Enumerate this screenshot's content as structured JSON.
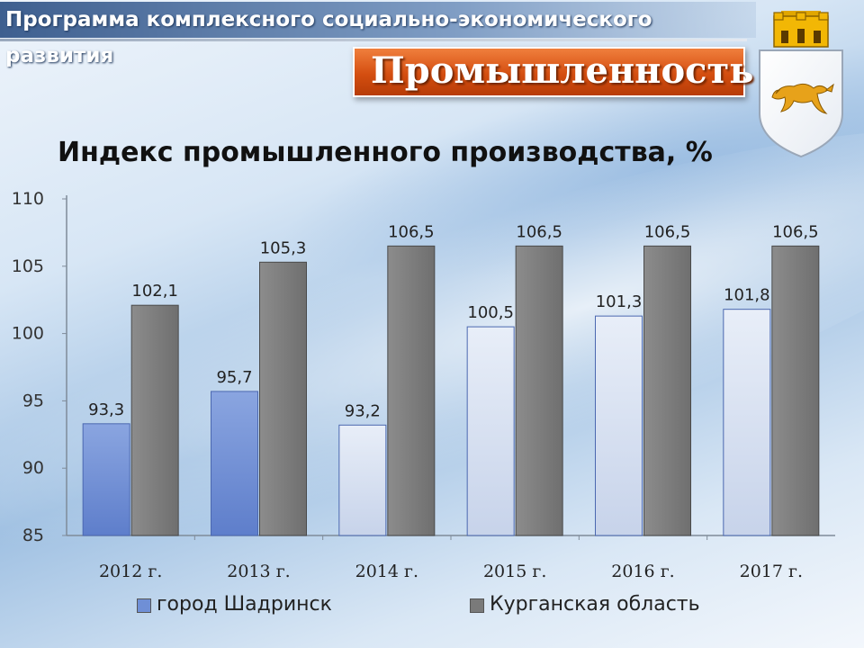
{
  "header": {
    "program_title": "Программа комплексного социально-экономического развития",
    "section_title": "Промышленность"
  },
  "emblem": {
    "icon": "coat-of-arms-fox-icon"
  },
  "colors": {
    "series_1": "#6f8fd6",
    "series_2": "#7a7a7a",
    "banner": "#d44e10"
  },
  "chart_data": {
    "type": "bar",
    "title": "Индекс промышленного производства, %",
    "categories": [
      "2012 г.",
      "2013 г.",
      "2014 г.",
      "2015 г.",
      "2016 г.",
      "2017 г."
    ],
    "series": [
      {
        "name": "город Шадринск",
        "values": [
          93.3,
          95.7,
          93.2,
          100.5,
          101.3,
          101.8
        ],
        "labels": [
          "93,3",
          "95,7",
          "93,2",
          "100,5",
          "101,3",
          "101,8"
        ]
      },
      {
        "name": "Курганская область",
        "values": [
          102.1,
          105.3,
          106.5,
          106.5,
          106.5,
          106.5
        ],
        "labels": [
          "102,1",
          "105,3",
          "106,5",
          "106,5",
          "106,5",
          "106,5"
        ]
      }
    ],
    "ylim": [
      85,
      110
    ],
    "yticks": [
      "85",
      "90",
      "95",
      "100",
      "105",
      "110"
    ],
    "grid": false,
    "legend": "bottom"
  }
}
